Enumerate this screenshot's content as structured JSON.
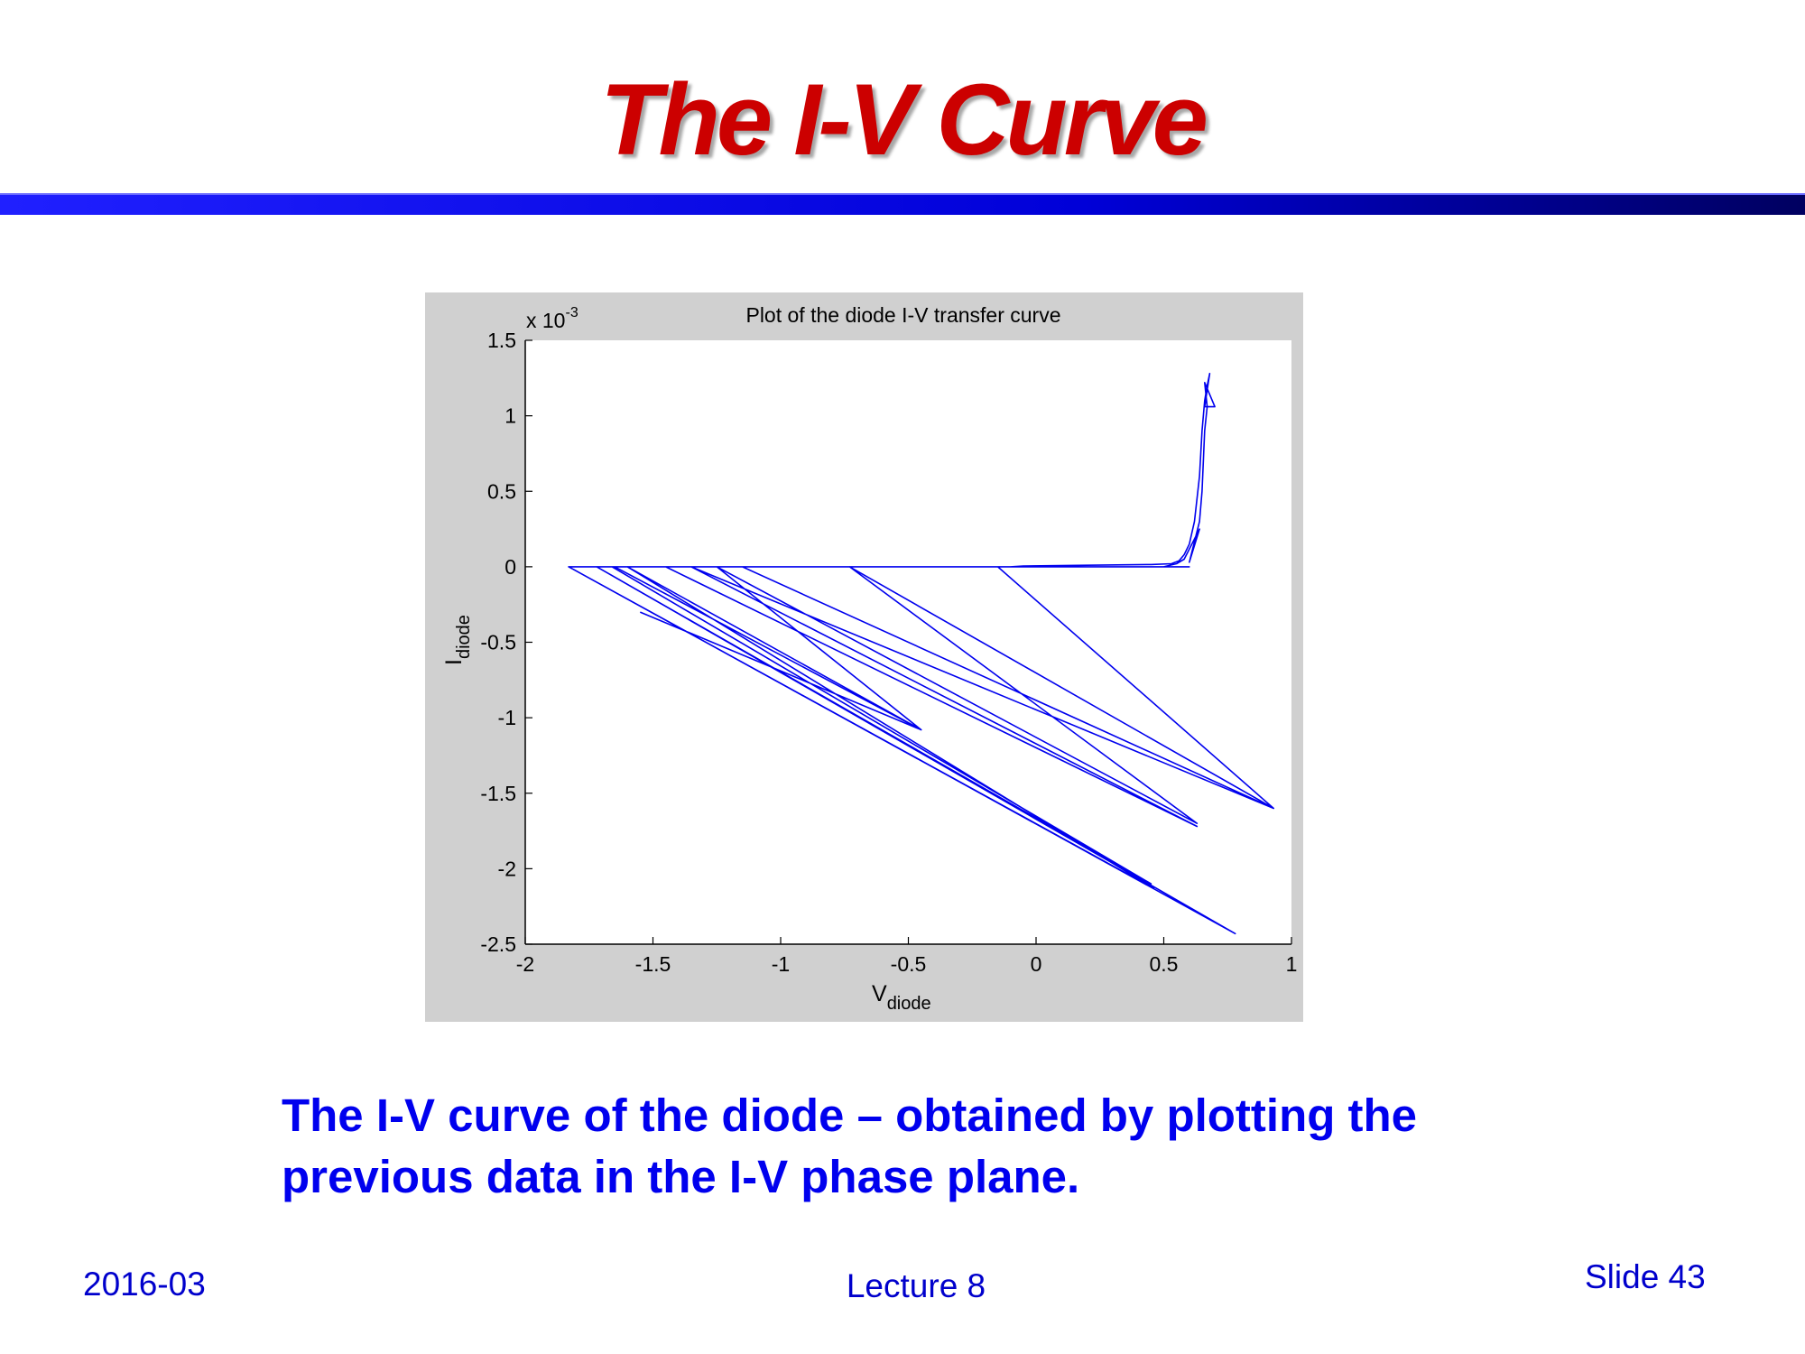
{
  "slide": {
    "title": "The I-V Curve",
    "caption_line1": "The I-V curve of the diode – obtained by plotting the",
    "caption_line2": "previous data in the I-V phase plane.",
    "footer_date": "2016-03",
    "footer_lecture": "Lecture 8",
    "footer_slide": "Slide 43",
    "colors": {
      "title": "#cc0000",
      "rule": "#0000d8",
      "caption": "#0000ee",
      "curve": "#0000ee"
    }
  },
  "chart_data": {
    "type": "line",
    "title": "Plot of the diode I-V transfer curve",
    "xlabel_main": "V",
    "xlabel_sub": "diode",
    "ylabel_main": "I",
    "ylabel_sub": "diode",
    "y_exponent_base": "x 10",
    "y_exponent_power": "-3",
    "xlim": [
      -2,
      1
    ],
    "ylim": [
      -2.5,
      1.5
    ],
    "x_ticks": [
      -2,
      -1.5,
      -1,
      -0.5,
      0,
      0.5,
      1
    ],
    "x_tick_labels": [
      "-2",
      "-1.5",
      "-1",
      "-0.5",
      "0",
      "0.5",
      "1"
    ],
    "y_ticks": [
      -2.5,
      -2,
      -1.5,
      -1,
      -0.5,
      0,
      0.5,
      1,
      1.5
    ],
    "y_tick_labels": [
      "-2.5",
      "-2",
      "-1.5",
      "-1",
      "-0.5",
      "0",
      "0.5",
      "1",
      "1.5"
    ],
    "grid": false,
    "series": [
      {
        "x": [
          -0.1,
          -0.05,
          0.2,
          0.45,
          0.53,
          0.56,
          0.58,
          0.6,
          0.62,
          0.64,
          0.65,
          0.66,
          0.67,
          0.68,
          0.66,
          0.7,
          0.66,
          0.67,
          0.66,
          0.65,
          0.64,
          0.6,
          0.64,
          0.58,
          0.55,
          0.5,
          0.4,
          -0.15,
          -1.04,
          -0.15,
          0.93,
          -0.73,
          0.63,
          -1.25,
          -0.45,
          -1.6,
          0.46,
          -1.83,
          0.78,
          -1.72,
          0.45,
          -1.66,
          -1.45,
          0.63,
          -1.35,
          0.93,
          -1.15,
          0.6,
          -1.83,
          -1.65,
          -0.45,
          -1.55
        ],
        "y": [
          0,
          0.005,
          0.01,
          0.015,
          0.02,
          0.04,
          0.08,
          0.15,
          0.3,
          0.6,
          0.9,
          1.1,
          1.2,
          1.28,
          1.06,
          1.06,
          1.22,
          1.06,
          0.9,
          0.5,
          0.3,
          0.03,
          0.25,
          0.05,
          0.02,
          0,
          0,
          0,
          0,
          0,
          -1.6,
          0,
          -1.7,
          0,
          -1.08,
          0,
          -2.13,
          0,
          -2.43,
          0,
          -2.1,
          0,
          0,
          -1.72,
          0,
          -1.6,
          0,
          0,
          0,
          0,
          -1.08,
          -0.3
        ]
      }
    ]
  }
}
